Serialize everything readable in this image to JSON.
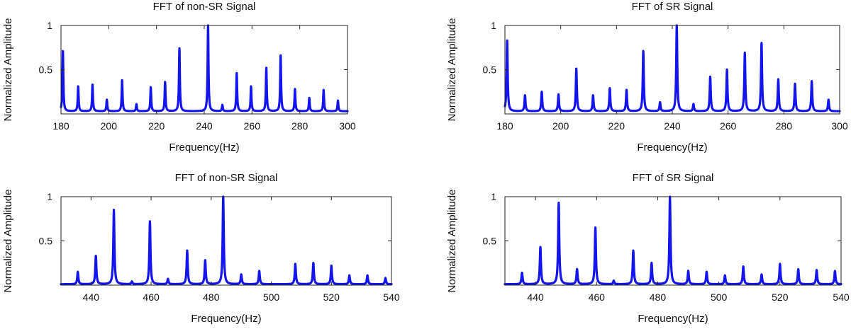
{
  "chart_data": [
    {
      "type": "line",
      "title": "FFT of non-SR Signal",
      "xlabel": "Frequency(Hz)",
      "ylabel": "Normalized Amplitude",
      "xlim": [
        180,
        300
      ],
      "ylim": [
        0,
        1
      ],
      "xticks": [
        180,
        200,
        220,
        240,
        260,
        280,
        300
      ],
      "yticks": [
        0.5,
        1
      ],
      "grid": false,
      "color": "#1414ee",
      "baseline": 0.03,
      "peaks": [
        {
          "f": 180.8,
          "a": 0.71
        },
        {
          "f": 187.2,
          "a": 0.31
        },
        {
          "f": 193.2,
          "a": 0.33
        },
        {
          "f": 199.2,
          "a": 0.16
        },
        {
          "f": 205.6,
          "a": 0.38
        },
        {
          "f": 211.6,
          "a": 0.11
        },
        {
          "f": 217.6,
          "a": 0.3
        },
        {
          "f": 223.6,
          "a": 0.36
        },
        {
          "f": 229.6,
          "a": 0.74
        },
        {
          "f": 241.6,
          "a": 1.0
        },
        {
          "f": 247.6,
          "a": 0.1
        },
        {
          "f": 253.6,
          "a": 0.46
        },
        {
          "f": 259.6,
          "a": 0.31
        },
        {
          "f": 266.0,
          "a": 0.52
        },
        {
          "f": 272.0,
          "a": 0.66
        },
        {
          "f": 278.0,
          "a": 0.28
        },
        {
          "f": 284.0,
          "a": 0.18
        },
        {
          "f": 290.0,
          "a": 0.27
        },
        {
          "f": 296.0,
          "a": 0.15
        }
      ]
    },
    {
      "type": "line",
      "title": "FFT of SR Signal",
      "xlabel": "Frequency(Hz)",
      "ylabel": "Normalized Amplitude",
      "xlim": [
        180,
        300
      ],
      "ylim": [
        0,
        1
      ],
      "xticks": [
        180,
        200,
        220,
        240,
        260,
        280,
        300
      ],
      "yticks": [
        0.5,
        1
      ],
      "grid": false,
      "color": "#1414ee",
      "baseline": 0.03,
      "peaks": [
        {
          "f": 180.8,
          "a": 0.83
        },
        {
          "f": 187.2,
          "a": 0.21
        },
        {
          "f": 193.2,
          "a": 0.25
        },
        {
          "f": 199.2,
          "a": 0.22
        },
        {
          "f": 205.6,
          "a": 0.51
        },
        {
          "f": 211.6,
          "a": 0.21
        },
        {
          "f": 217.6,
          "a": 0.29
        },
        {
          "f": 223.6,
          "a": 0.27
        },
        {
          "f": 229.6,
          "a": 0.71
        },
        {
          "f": 235.6,
          "a": 0.13
        },
        {
          "f": 241.6,
          "a": 1.0
        },
        {
          "f": 247.6,
          "a": 0.11
        },
        {
          "f": 253.6,
          "a": 0.42
        },
        {
          "f": 259.6,
          "a": 0.5
        },
        {
          "f": 266.0,
          "a": 0.69
        },
        {
          "f": 272.0,
          "a": 0.8
        },
        {
          "f": 278.0,
          "a": 0.39
        },
        {
          "f": 284.0,
          "a": 0.34
        },
        {
          "f": 290.0,
          "a": 0.37
        },
        {
          "f": 296.0,
          "a": 0.16
        }
      ]
    },
    {
      "type": "line",
      "title": "FFT of non-SR Signal",
      "xlabel": "Frequency(Hz)",
      "ylabel": "Normalized Amplitude",
      "xlim": [
        430,
        540
      ],
      "ylim": [
        0,
        1
      ],
      "xticks": [
        440,
        460,
        480,
        500,
        520,
        540
      ],
      "yticks": [
        0.5,
        1
      ],
      "grid": false,
      "color": "#1414ee",
      "baseline": 0.01,
      "peaks": [
        {
          "f": 435.6,
          "a": 0.15
        },
        {
          "f": 441.6,
          "a": 0.33
        },
        {
          "f": 447.6,
          "a": 0.85
        },
        {
          "f": 453.6,
          "a": 0.04
        },
        {
          "f": 459.6,
          "a": 0.72
        },
        {
          "f": 465.6,
          "a": 0.07
        },
        {
          "f": 472.0,
          "a": 0.39
        },
        {
          "f": 478.0,
          "a": 0.28
        },
        {
          "f": 484.0,
          "a": 1.0
        },
        {
          "f": 490.0,
          "a": 0.12
        },
        {
          "f": 496.0,
          "a": 0.16
        },
        {
          "f": 508.0,
          "a": 0.24
        },
        {
          "f": 514.0,
          "a": 0.25
        },
        {
          "f": 520.0,
          "a": 0.22
        },
        {
          "f": 526.0,
          "a": 0.11
        },
        {
          "f": 532.0,
          "a": 0.11
        },
        {
          "f": 538.0,
          "a": 0.08
        }
      ]
    },
    {
      "type": "line",
      "title": "FFT of SR Signal",
      "xlabel": "Frequency(Hz)",
      "ylabel": "Normalized Amplitude",
      "xlim": [
        430,
        540
      ],
      "ylim": [
        0,
        1
      ],
      "xticks": [
        440,
        460,
        480,
        500,
        520,
        540
      ],
      "yticks": [
        0.5,
        1
      ],
      "grid": false,
      "color": "#1414ee",
      "baseline": 0.01,
      "peaks": [
        {
          "f": 435.6,
          "a": 0.14
        },
        {
          "f": 441.6,
          "a": 0.43
        },
        {
          "f": 447.6,
          "a": 0.93
        },
        {
          "f": 453.6,
          "a": 0.18
        },
        {
          "f": 459.6,
          "a": 0.65
        },
        {
          "f": 465.6,
          "a": 0.05
        },
        {
          "f": 472.0,
          "a": 0.39
        },
        {
          "f": 478.0,
          "a": 0.25
        },
        {
          "f": 484.0,
          "a": 1.0
        },
        {
          "f": 490.0,
          "a": 0.16
        },
        {
          "f": 496.0,
          "a": 0.15
        },
        {
          "f": 502.0,
          "a": 0.11
        },
        {
          "f": 508.0,
          "a": 0.21
        },
        {
          "f": 514.0,
          "a": 0.12
        },
        {
          "f": 520.0,
          "a": 0.24
        },
        {
          "f": 526.0,
          "a": 0.18
        },
        {
          "f": 532.0,
          "a": 0.17
        },
        {
          "f": 538.0,
          "a": 0.16
        }
      ]
    }
  ]
}
